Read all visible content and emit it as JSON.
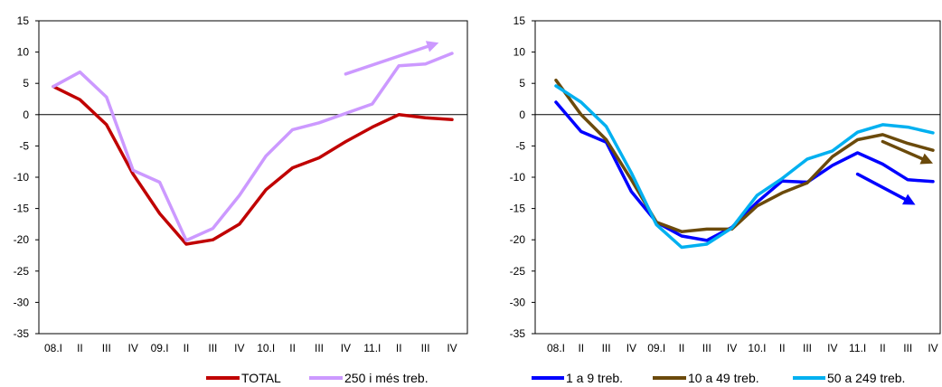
{
  "chart_data": [
    {
      "type": "line",
      "categories": [
        "08.I",
        "II",
        "III",
        "IV",
        "09.I",
        "II",
        "III",
        "IV",
        "10.I",
        "II",
        "III",
        "IV",
        "11.I",
        "II",
        "III",
        "IV"
      ],
      "ylim": [
        -35,
        15
      ],
      "yticks": [
        15,
        10,
        5,
        0,
        -5,
        -10,
        -15,
        -20,
        -25,
        -30,
        -35
      ],
      "grid": false,
      "legend": "bottom-right",
      "series": [
        {
          "name": "TOTAL",
          "color": "#c00000",
          "values": [
            4.5,
            2.4,
            -1.6,
            -9.5,
            -15.8,
            -20.7,
            -20.0,
            -17.5,
            -12.0,
            -8.5,
            -6.9,
            -4.3,
            -2.0,
            0.0,
            -0.5,
            -0.8
          ]
        },
        {
          "name": "250 i més treb.",
          "color": "#cc99ff",
          "values": [
            4.5,
            6.8,
            2.8,
            -8.9,
            -10.8,
            -20.1,
            -18.2,
            -12.9,
            -6.6,
            -2.4,
            -1.3,
            0.2,
            1.7,
            7.8,
            8.1,
            9.8
          ]
        }
      ],
      "arrows": [
        {
          "color": "#cc99ff",
          "from": [
            11,
            6.5
          ],
          "to": [
            14.5,
            11.5
          ]
        }
      ]
    },
    {
      "type": "line",
      "categories": [
        "08.I",
        "II",
        "III",
        "IV",
        "09.I",
        "II",
        "III",
        "IV",
        "10.I",
        "II",
        "III",
        "IV",
        "11.I",
        "II",
        "III",
        "IV"
      ],
      "ylim": [
        -35,
        15
      ],
      "yticks": [
        15,
        10,
        5,
        0,
        -5,
        -10,
        -15,
        -20,
        -25,
        -30,
        -35
      ],
      "grid": false,
      "legend": "bottom-right",
      "series": [
        {
          "name": "1 a 9 treb.",
          "color": "#0000ff",
          "values": [
            2.0,
            -2.7,
            -4.4,
            -12.3,
            -17.2,
            -19.4,
            -20.1,
            -18.0,
            -14.0,
            -10.6,
            -10.8,
            -8.1,
            -6.1,
            -7.9,
            -10.4,
            -10.7
          ]
        },
        {
          "name": "10 a 49 treb.",
          "color": "#6b4a0b",
          "values": [
            5.5,
            0.0,
            -4.0,
            -10.4,
            -17.2,
            -18.7,
            -18.3,
            -18.3,
            -14.6,
            -12.5,
            -10.9,
            -6.7,
            -4.0,
            -3.2,
            -4.6,
            -5.7
          ]
        },
        {
          "name": "50 a 249 treb.",
          "color": "#00b0f0",
          "values": [
            4.6,
            2.0,
            -1.9,
            -9.3,
            -17.6,
            -21.2,
            -20.7,
            -18.1,
            -12.9,
            -10.2,
            -7.1,
            -5.8,
            -2.8,
            -1.6,
            -2.0,
            -2.9
          ]
        }
      ],
      "arrows": [
        {
          "color": "#6b4a0b",
          "from": [
            13.0,
            -4.3
          ],
          "to": [
            15.0,
            -7.8
          ]
        },
        {
          "color": "#0000ff",
          "from": [
            12.0,
            -9.5
          ],
          "to": [
            14.3,
            -14.4
          ]
        }
      ]
    }
  ]
}
